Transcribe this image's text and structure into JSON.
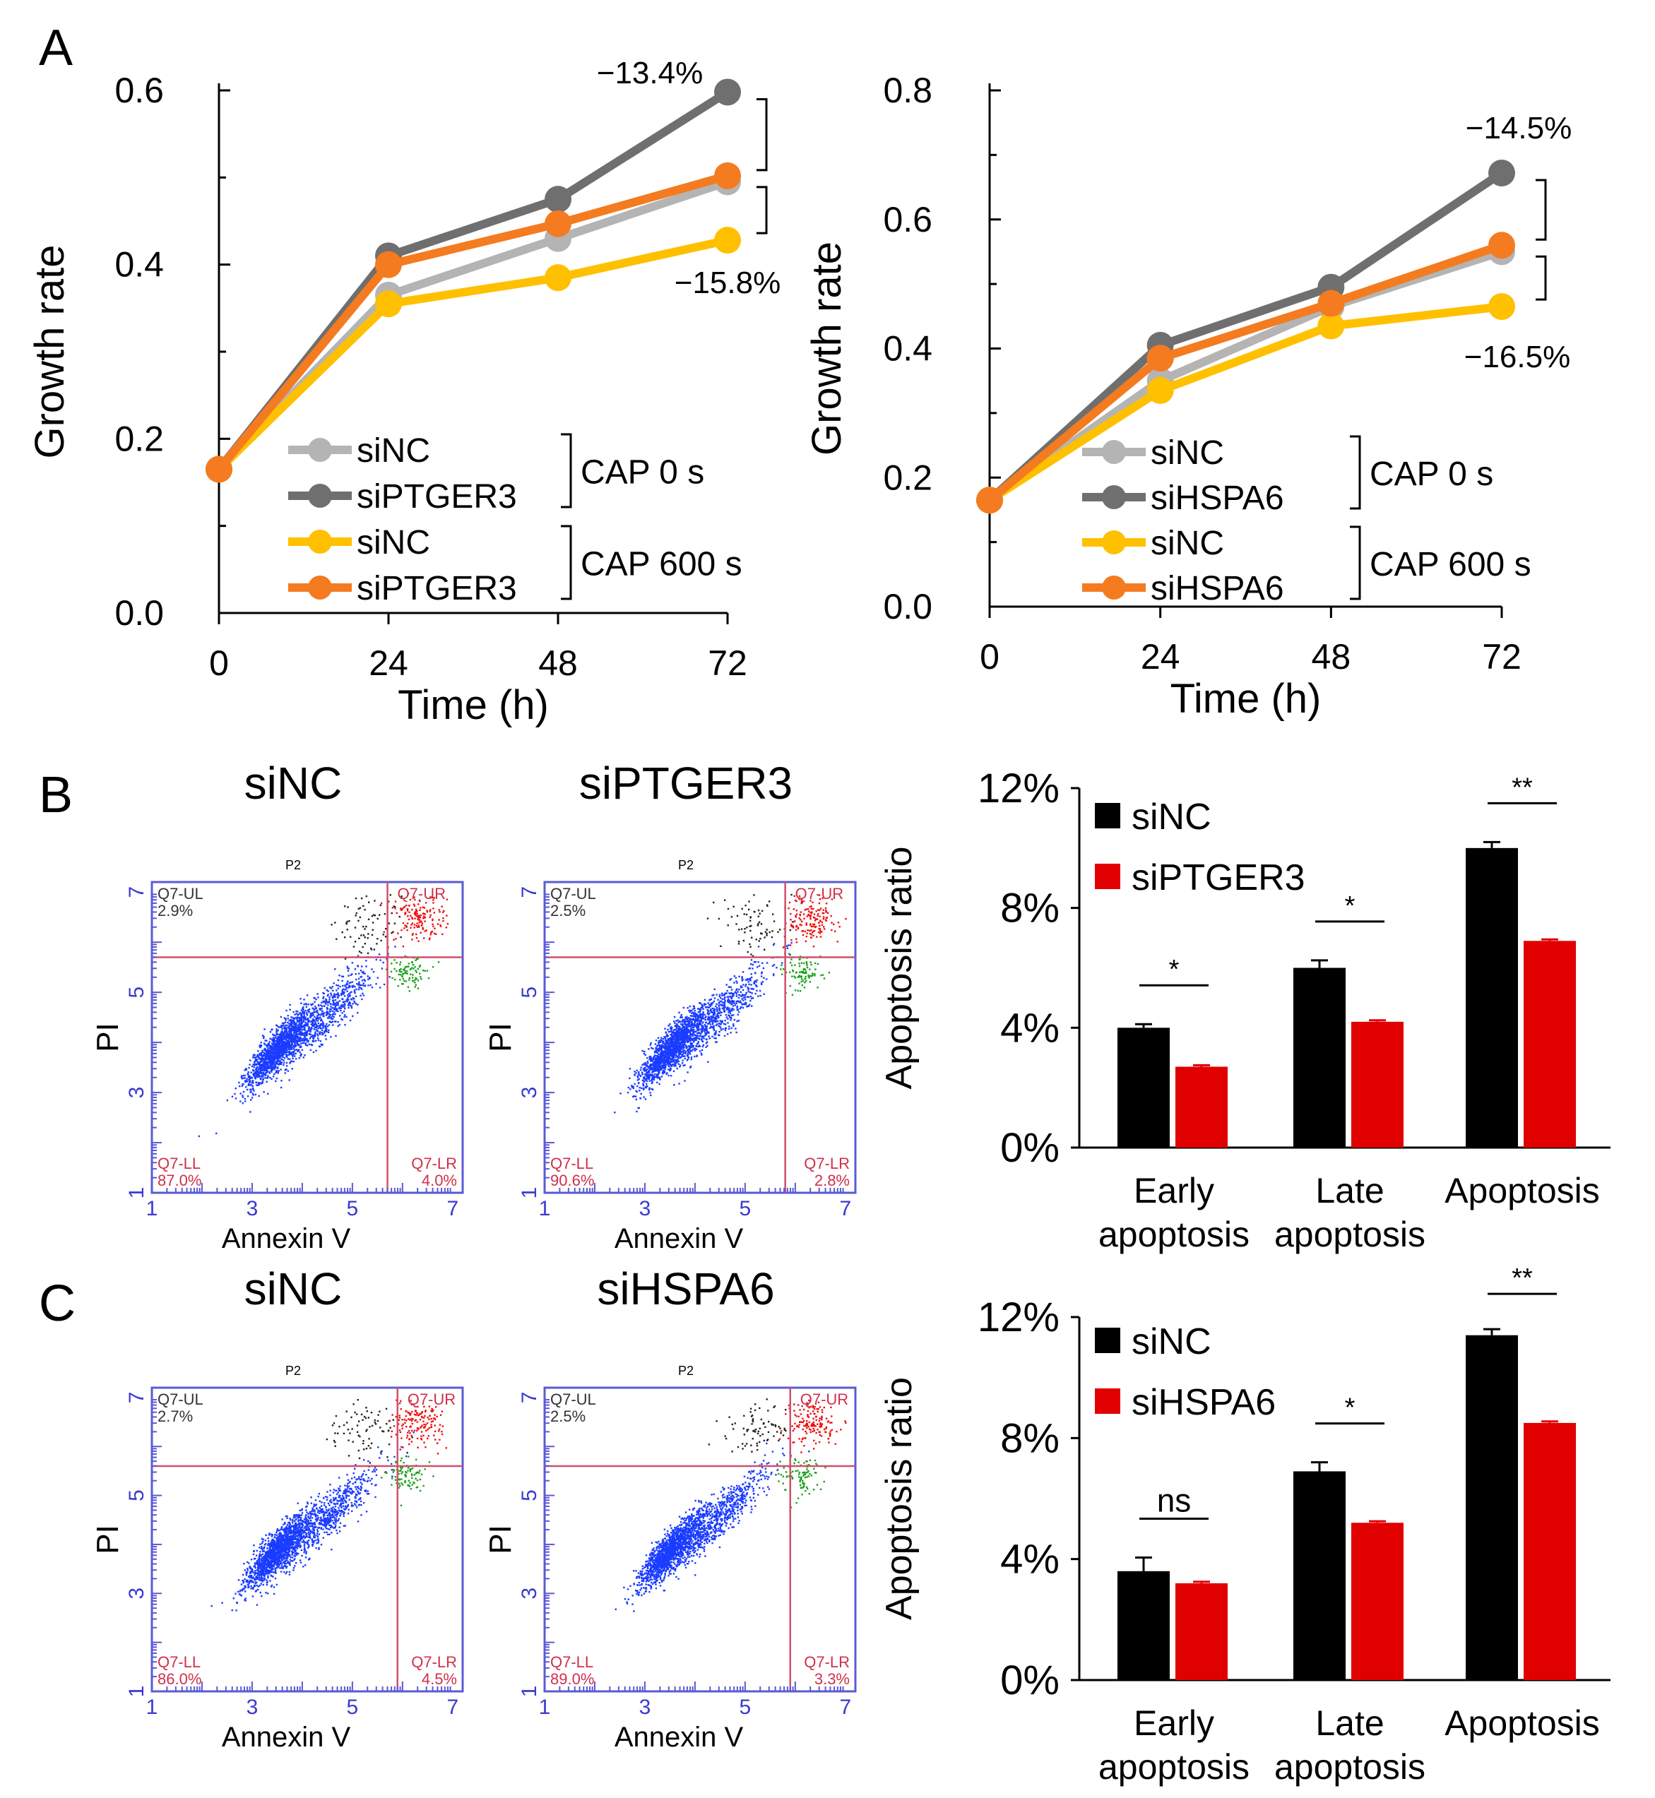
{
  "chart_data": [
    {
      "id": "A-left",
      "type": "line",
      "panel_label": "A",
      "xlabel": "Time (h)",
      "ylabel": "Growth rate",
      "x": [
        0,
        24,
        48,
        72
      ],
      "xticks": [
        "0",
        "24",
        "48",
        "72"
      ],
      "ylim": [
        0,
        0.6
      ],
      "yticks": [
        "0.0",
        "0.2",
        "0.4",
        "0.6"
      ],
      "ytick_values": [
        0,
        0.2,
        0.4,
        0.6
      ],
      "series": [
        {
          "name": "siNC",
          "group": "CAP 0 s",
          "color": "#b4b4b4",
          "values": [
            0.165,
            0.365,
            0.43,
            0.495
          ]
        },
        {
          "name": "siPTGER3",
          "group": "CAP 0 s",
          "color": "#6f6f6f",
          "values": [
            0.165,
            0.41,
            0.475,
            0.598
          ]
        },
        {
          "name": "siNC",
          "group": "CAP 600 s",
          "color": "#ffc000",
          "values": [
            0.165,
            0.355,
            0.385,
            0.428
          ]
        },
        {
          "name": "siPTGER3",
          "group": "CAP 600 s",
          "color": "#f47b20",
          "values": [
            0.165,
            0.4,
            0.447,
            0.502
          ]
        }
      ],
      "legend_groups": [
        "CAP 0 s",
        "CAP 600 s"
      ],
      "annotations": [
        "−13.4%",
        "−15.8%"
      ]
    },
    {
      "id": "A-right",
      "type": "line",
      "xlabel": "Time (h)",
      "ylabel": "Growth rate",
      "x": [
        0,
        24,
        48,
        72
      ],
      "xticks": [
        "0",
        "24",
        "48",
        "72"
      ],
      "ylim": [
        0,
        0.8
      ],
      "yticks": [
        "0.0",
        "0.2",
        "0.4",
        "0.6",
        "0.8"
      ],
      "ytick_values": [
        0,
        0.2,
        0.4,
        0.6,
        0.8
      ],
      "series": [
        {
          "name": "siNC",
          "group": "CAP 0 s",
          "color": "#b4b4b4",
          "values": [
            0.165,
            0.35,
            0.465,
            0.55
          ]
        },
        {
          "name": "siHSPA6",
          "group": "CAP 0 s",
          "color": "#6f6f6f",
          "values": [
            0.165,
            0.405,
            0.495,
            0.672
          ]
        },
        {
          "name": "siNC",
          "group": "CAP 600 s",
          "color": "#ffc000",
          "values": [
            0.165,
            0.335,
            0.435,
            0.465
          ]
        },
        {
          "name": "siHSPA6",
          "group": "CAP 600 s",
          "color": "#f47b20",
          "values": [
            0.165,
            0.385,
            0.47,
            0.56
          ]
        }
      ],
      "legend_groups": [
        "CAP 0 s",
        "CAP 600 s"
      ],
      "annotations": [
        "−14.5%",
        "−16.5%"
      ]
    },
    {
      "id": "B-bar",
      "type": "bar",
      "panel_label": "B",
      "ylabel": "Apoptosis ratio",
      "categories": [
        "Early apoptosis",
        "Late apoptosis",
        "Apoptosis"
      ],
      "category_lines": [
        [
          "Early",
          "apoptosis"
        ],
        [
          "Late",
          "apoptosis"
        ],
        [
          "Apoptosis",
          ""
        ]
      ],
      "ylim": [
        0,
        12
      ],
      "yticks": [
        "0%",
        "4%",
        "8%",
        "12%"
      ],
      "ytick_values": [
        0,
        4,
        8,
        12
      ],
      "series": [
        {
          "name": "siNC",
          "color": "#000000",
          "values": [
            4.0,
            6.0,
            10.0
          ],
          "errors": [
            0.12,
            0.25,
            0.2
          ]
        },
        {
          "name": "siPTGER3",
          "color": "#e00000",
          "values": [
            2.7,
            4.2,
            6.9
          ],
          "errors": [
            0.05,
            0.05,
            0.05
          ]
        }
      ],
      "significance": [
        "*",
        "*",
        "**"
      ]
    },
    {
      "id": "C-bar",
      "type": "bar",
      "panel_label": "C",
      "ylabel": "Apoptosis ratio",
      "categories": [
        "Early apoptosis",
        "Late apoptosis",
        "Apoptosis"
      ],
      "category_lines": [
        [
          "Early",
          "apoptosis"
        ],
        [
          "Late",
          "apoptosis"
        ],
        [
          "Apoptosis",
          ""
        ]
      ],
      "ylim": [
        0,
        12
      ],
      "yticks": [
        "0%",
        "4%",
        "8%",
        "12%"
      ],
      "ytick_values": [
        0,
        4,
        8,
        12
      ],
      "series": [
        {
          "name": "siNC",
          "color": "#000000",
          "values": [
            3.6,
            6.9,
            11.4
          ],
          "errors": [
            0.45,
            0.3,
            0.2
          ]
        },
        {
          "name": "siHSPA6",
          "color": "#e00000",
          "values": [
            3.2,
            5.2,
            8.5
          ],
          "errors": [
            0.05,
            0.05,
            0.05
          ]
        }
      ],
      "significance": [
        "ns",
        "*",
        "**"
      ]
    }
  ],
  "flow_plots": [
    {
      "id": "B-siNC",
      "title": "siNC",
      "gate": "P2",
      "xlabel": "Annexin V",
      "ylabel": "PI",
      "ticks": [
        "1",
        "3",
        "5",
        "7"
      ],
      "quadrants": {
        "UL_label": "Q7-UL",
        "UL_value": "2.9%",
        "UR_label": "Q7-UR",
        "LL_label": "Q7-LL",
        "LL_value": "87.0%",
        "LR_label": "Q7-LR",
        "LR_value": "4.0%"
      }
    },
    {
      "id": "B-siPTGER3",
      "title": "siPTGER3",
      "gate": "P2",
      "xlabel": "Annexin V",
      "ylabel": "PI",
      "ticks": [
        "1",
        "3",
        "5",
        "7"
      ],
      "quadrants": {
        "UL_label": "Q7-UL",
        "UL_value": "2.5%",
        "UR_label": "Q7-UR",
        "LL_label": "Q7-LL",
        "LL_value": "90.6%",
        "LR_label": "Q7-LR",
        "LR_value": "2.8%"
      }
    },
    {
      "id": "C-siNC",
      "title": "siNC",
      "gate": "P2",
      "xlabel": "Annexin V",
      "ylabel": "PI",
      "ticks": [
        "1",
        "3",
        "5",
        "7"
      ],
      "quadrants": {
        "UL_label": "Q7-UL",
        "UL_value": "2.7%",
        "UR_label": "Q7-UR",
        "LL_label": "Q7-LL",
        "LL_value": "86.0%",
        "LR_label": "Q7-LR",
        "LR_value": "4.5%"
      }
    },
    {
      "id": "C-siHSPA6",
      "title": "siHSPA6",
      "gate": "P2",
      "xlabel": "Annexin V",
      "ylabel": "PI",
      "ticks": [
        "1",
        "3",
        "5",
        "7"
      ],
      "quadrants": {
        "UL_label": "Q7-UL",
        "UL_value": "2.5%",
        "UR_label": "Q7-UR",
        "LL_label": "Q7-LL",
        "LL_value": "89.0%",
        "LR_label": "Q7-LR",
        "LR_value": "3.3%"
      }
    }
  ],
  "colors": {
    "axis": "#000000",
    "flow_border": "#5a5ad6",
    "flow_tick_text": "#3a3ad0",
    "gate_line": "#d0506a",
    "quadrant_text_top": "#333333",
    "quadrant_text_red": "#d0304a",
    "dots_live": "#1a3cff",
    "dots_ul": "#222222",
    "dots_ur": "#ee1010",
    "dots_lr": "#1aa01a"
  }
}
